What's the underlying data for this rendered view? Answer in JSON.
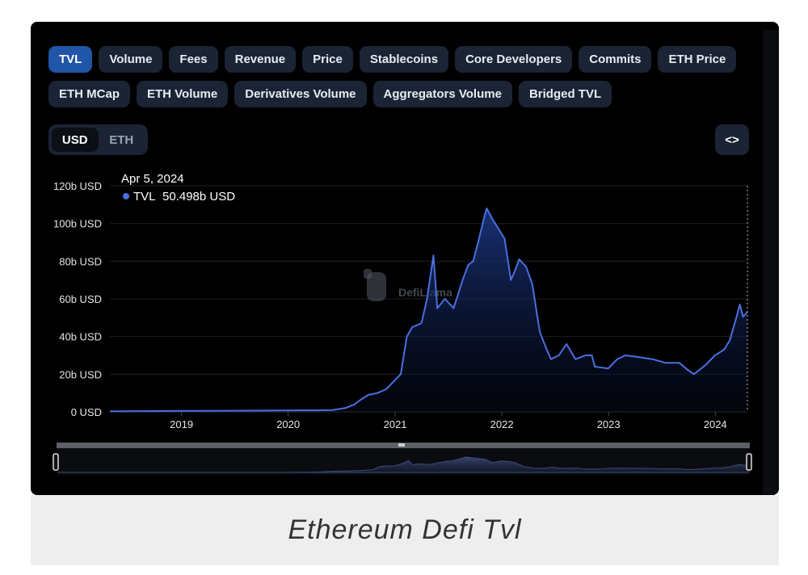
{
  "tabs": {
    "row1": [
      "TVL",
      "Volume",
      "Fees",
      "Revenue",
      "Price",
      "Stablecoins",
      "Core Developers",
      "Commits",
      "ETH Price"
    ],
    "row2": [
      "ETH MCap",
      "ETH Volume",
      "Derivatives Volume",
      "Aggregators Volume",
      "Bridged TVL"
    ],
    "active": "TVL"
  },
  "currency_toggle": {
    "options": [
      "USD",
      "ETH"
    ],
    "active": "USD"
  },
  "embed_button": {
    "label": "<>"
  },
  "tooltip": {
    "date": "Apr 5, 2024",
    "series": "TVL",
    "value": "50.498b USD"
  },
  "watermark": "DefiLlama",
  "caption": "Ethereum  Defi  Tvl",
  "colors": {
    "line": "#4a6fe0",
    "active_tab": "#2155a8",
    "tab_bg": "#1a2434",
    "panel_bg": "#000000"
  },
  "chart_data": {
    "type": "area",
    "title": "",
    "xlabel": "",
    "ylabel": "",
    "y_ticks": [
      "0 USD",
      "20b USD",
      "40b USD",
      "60b USD",
      "80b USD",
      "100b USD",
      "120b USD"
    ],
    "x_ticks": [
      "2019",
      "2020",
      "2021",
      "2022",
      "2023",
      "2024"
    ],
    "ylim": [
      0,
      120
    ],
    "xlim": [
      "2018-05-01",
      "2024-04-20"
    ],
    "grid": true,
    "series": [
      {
        "name": "TVL",
        "x": [
          "2018-05-01",
          "2018-09-01",
          "2019-01-01",
          "2019-06-01",
          "2019-11-01",
          "2020-02-01",
          "2020-04-01",
          "2020-06-01",
          "2020-07-15",
          "2020-08-15",
          "2020-09-01",
          "2020-10-01",
          "2020-11-01",
          "2020-12-01",
          "2021-01-01",
          "2021-01-20",
          "2021-02-10",
          "2021-03-01",
          "2021-04-01",
          "2021-04-20",
          "2021-05-12",
          "2021-05-25",
          "2021-06-20",
          "2021-07-20",
          "2021-08-20",
          "2021-09-08",
          "2021-09-25",
          "2021-10-15",
          "2021-11-01",
          "2021-11-10",
          "2021-12-01",
          "2021-12-25",
          "2022-01-10",
          "2022-02-01",
          "2022-02-15",
          "2022-03-01",
          "2022-03-25",
          "2022-04-15",
          "2022-05-06",
          "2022-05-12",
          "2022-06-01",
          "2022-06-18",
          "2022-07-15",
          "2022-08-10",
          "2022-09-10",
          "2022-10-15",
          "2022-11-05",
          "2022-11-15",
          "2022-12-31",
          "2023-01-31",
          "2023-02-28",
          "2023-04-15",
          "2023-05-31",
          "2023-07-15",
          "2023-08-31",
          "2023-10-01",
          "2023-10-20",
          "2023-11-30",
          "2023-12-31",
          "2024-01-31",
          "2024-02-20",
          "2024-03-13",
          "2024-03-25",
          "2024-04-05",
          "2024-04-20"
        ],
        "values": [
          0.3,
          0.4,
          0.5,
          0.6,
          0.7,
          0.8,
          0.8,
          1.0,
          2.0,
          4.0,
          6.0,
          9.0,
          10.0,
          12.0,
          17.0,
          20.0,
          40.0,
          45.0,
          47.0,
          60.0,
          83.0,
          55.0,
          60.0,
          55.0,
          70.0,
          78.0,
          80.0,
          92.0,
          103.0,
          108.0,
          102.0,
          96.0,
          92.0,
          70.0,
          75.0,
          81.0,
          77.0,
          68.0,
          47.0,
          42.0,
          34.0,
          28.0,
          30.0,
          36.0,
          28.0,
          30.0,
          30.0,
          24.0,
          23.0,
          28.0,
          30.0,
          29.0,
          28.0,
          26.0,
          26.0,
          22.0,
          20.0,
          25.0,
          30.0,
          33.0,
          38.0,
          50.0,
          57.0,
          50.5,
          53.0
        ]
      }
    ]
  }
}
